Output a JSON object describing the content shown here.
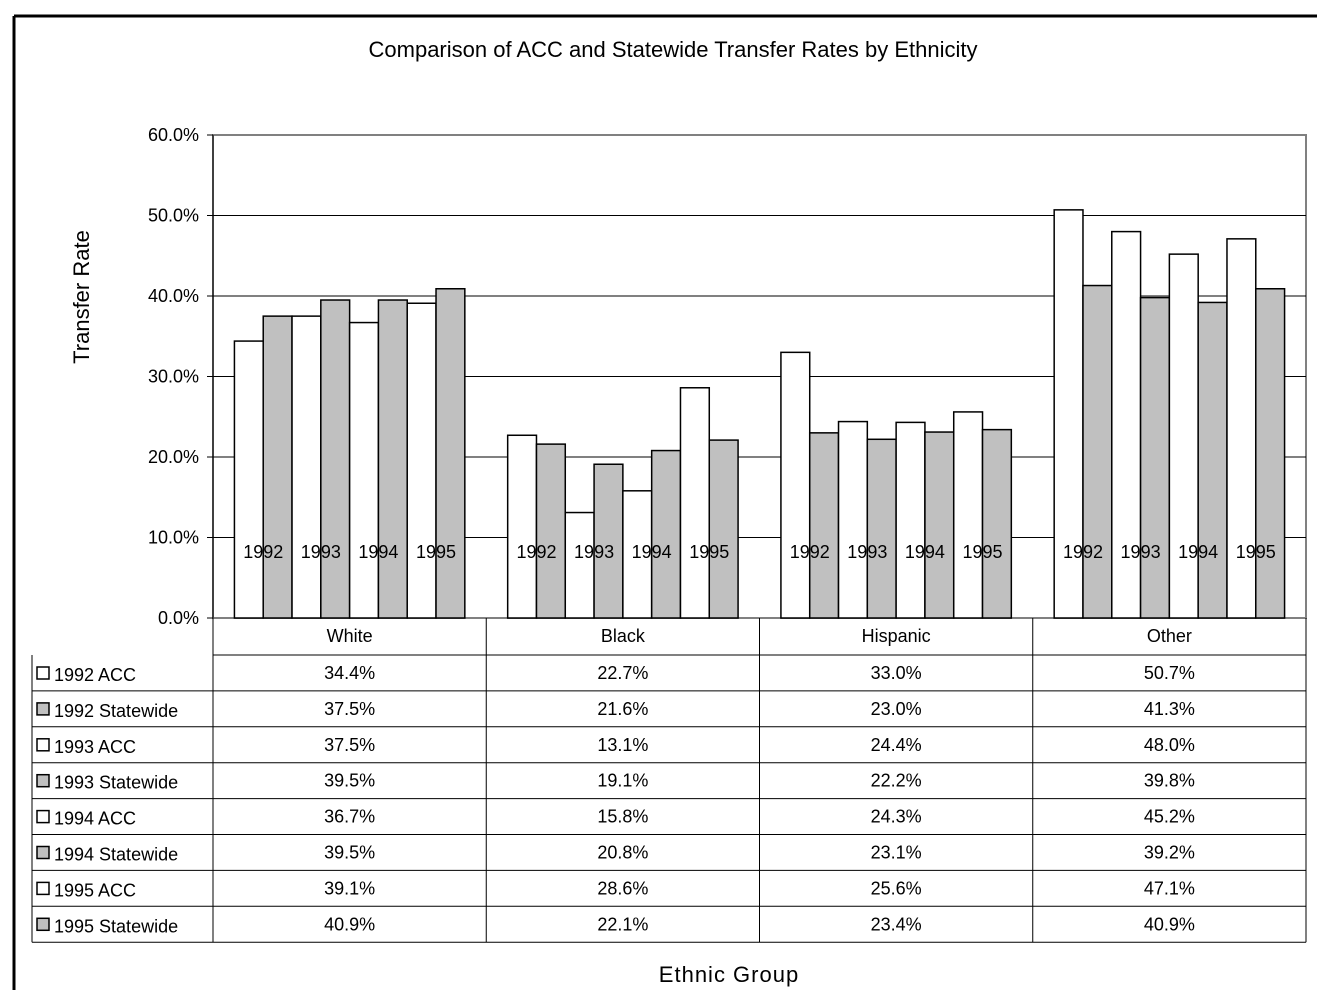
{
  "chart_data": {
    "type": "bar",
    "title": "Comparison of ACC and Statewide Transfer Rates by Ethnicity",
    "ylabel": "Transfer Rate",
    "xlabel": "Ethnic Group",
    "ylim": [
      0,
      60
    ],
    "y_ticks": [
      "0.0%",
      "10.0%",
      "20.0%",
      "30.0%",
      "40.0%",
      "50.0%",
      "60.0%"
    ],
    "grid": true,
    "legend_placement": "table-left",
    "categories": [
      "White",
      "Black",
      "Hispanic",
      "Other"
    ],
    "year_labels": [
      "1992",
      "1993",
      "1994",
      "1995"
    ],
    "series": [
      {
        "name": "1992 ACC",
        "kind": "acc",
        "values": [
          34.4,
          22.7,
          33.0,
          50.7
        ],
        "labels": [
          "34.4%",
          "22.7%",
          "33.0%",
          "50.7%"
        ]
      },
      {
        "name": "1992 Statewide",
        "kind": "statewide",
        "values": [
          37.5,
          21.6,
          23.0,
          41.3
        ],
        "labels": [
          "37.5%",
          "21.6%",
          "23.0%",
          "41.3%"
        ]
      },
      {
        "name": "1993 ACC",
        "kind": "acc",
        "values": [
          37.5,
          13.1,
          24.4,
          48.0
        ],
        "labels": [
          "37.5%",
          "13.1%",
          "24.4%",
          "48.0%"
        ]
      },
      {
        "name": "1993 Statewide",
        "kind": "statewide",
        "values": [
          39.5,
          19.1,
          22.2,
          39.8
        ],
        "labels": [
          "39.5%",
          "19.1%",
          "22.2%",
          "39.8%"
        ]
      },
      {
        "name": "1994 ACC",
        "kind": "acc",
        "values": [
          36.7,
          15.8,
          24.3,
          45.2
        ],
        "labels": [
          "36.7%",
          "15.8%",
          "24.3%",
          "45.2%"
        ]
      },
      {
        "name": "1994 Statewide",
        "kind": "statewide",
        "values": [
          39.5,
          20.8,
          23.1,
          39.2
        ],
        "labels": [
          "39.5%",
          "20.8%",
          "23.1%",
          "39.2%"
        ]
      },
      {
        "name": "1995 ACC",
        "kind": "acc",
        "values": [
          39.1,
          28.6,
          25.6,
          47.1
        ],
        "labels": [
          "39.1%",
          "28.6%",
          "25.6%",
          "47.1%"
        ]
      },
      {
        "name": "1995 Statewide",
        "kind": "statewide",
        "values": [
          40.9,
          22.1,
          23.4,
          40.9
        ],
        "labels": [
          "40.9%",
          "22.1%",
          "23.4%",
          "40.9%"
        ]
      }
    ],
    "colors": {
      "acc": "#ffffff",
      "statewide": "#c0c0c0",
      "grid": "#000000",
      "plot_border": "#808080",
      "bar_stroke": "#000000"
    }
  }
}
